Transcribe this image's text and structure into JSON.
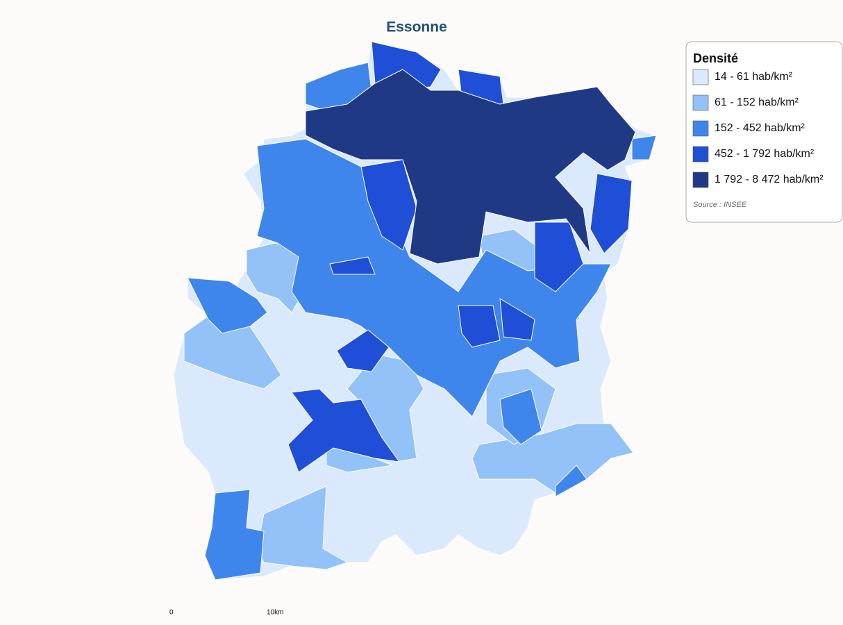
{
  "header": {
    "title": "Essonne"
  },
  "legend": {
    "title": "Densité",
    "classes": [
      {
        "label": "14 - 61 hab/km²",
        "color": "#dbe9fc"
      },
      {
        "label": "61 - 152 hab/km²",
        "color": "#93c2f8"
      },
      {
        "label": "152 - 452 hab/km²",
        "color": "#3f86ec"
      },
      {
        "label": "452 - 1 792 hab/km²",
        "color": "#1f4fd6"
      },
      {
        "label": "1 792 - 8 472 hab/km²",
        "color": "#1f3985"
      }
    ],
    "source": "Source : INSEE"
  },
  "scale_bar": {
    "labels": [
      "0",
      "10km"
    ]
  }
}
